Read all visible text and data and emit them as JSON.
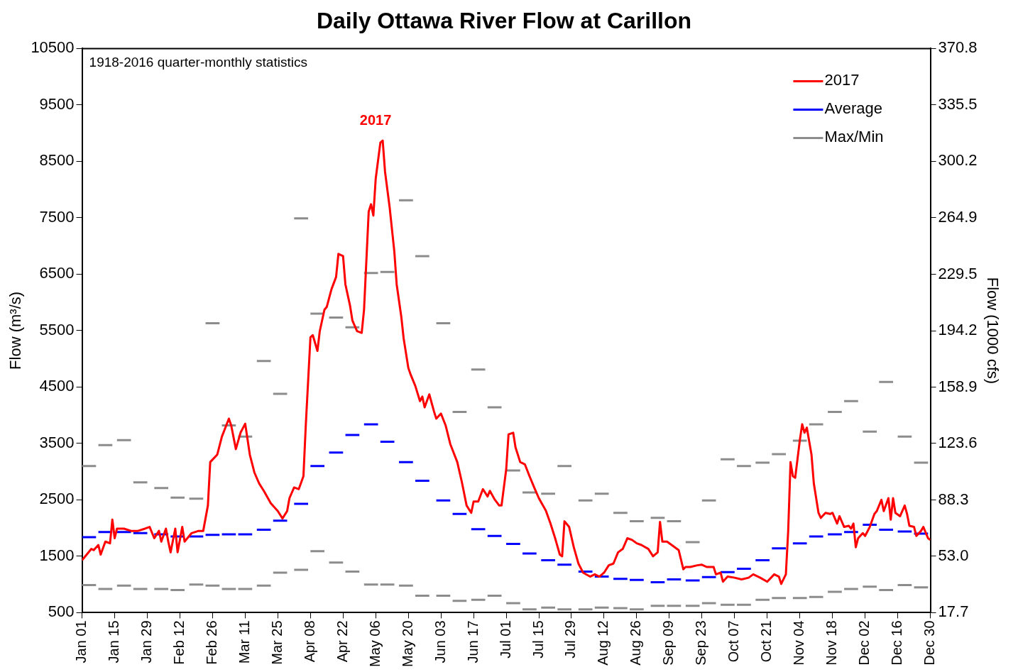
{
  "chart_data": {
    "type": "line",
    "title": "Daily Ottawa River Flow at Carillon",
    "ylabel": "Flow (m³/s)",
    "y2label": "Flow (1000 cfs)",
    "annotations": [
      "1918-2016 quarter-monthly statistics",
      "2017"
    ],
    "x": [
      "--01-01",
      "--01-07",
      null,
      "--01-08",
      "--01-14",
      null,
      "--01-16",
      "--01-22",
      null,
      "--01-23",
      "--01-29",
      null,
      "--02-01",
      "--02-07",
      null,
      "--02-08",
      "--02-14",
      null,
      "--02-16",
      "--02-22",
      null,
      "--02-23",
      "--02-29",
      null,
      "--03-01",
      "--03-07",
      null,
      "--03-08",
      "--03-14",
      null,
      "--03-16",
      "--03-22",
      null,
      "--03-23",
      "--03-29",
      null,
      "--04-01",
      "--04-07",
      null,
      "--04-08",
      "--04-14",
      null,
      "--04-16",
      "--04-22",
      null,
      "--04-23",
      "--04-29",
      null,
      "--05-01",
      "--05-07",
      null,
      "--05-08",
      "--05-14",
      null,
      "--05-16",
      "--05-22",
      null,
      "--05-23",
      "--05-29",
      null,
      "--06-01",
      "--06-07",
      null,
      "--06-08",
      "--06-14",
      null,
      "--06-16",
      "--06-22",
      null,
      "--06-23",
      "--06-29",
      null,
      "--07-01",
      "--07-07",
      null,
      "--07-08",
      "--07-14",
      null,
      "--07-16",
      "--07-22",
      null,
      "--07-23",
      "--07-29",
      null,
      "--08-01",
      "--08-07",
      null,
      "--08-08",
      "--08-14",
      null,
      "--08-16",
      "--08-22",
      null,
      "--08-23",
      "--08-29",
      null,
      "--09-01",
      "--09-07",
      null,
      "--09-08",
      "--09-14",
      null,
      "--09-16",
      "--09-22",
      null,
      "--09-23",
      "--09-29",
      null,
      "--10-01",
      "--10-07",
      null,
      "--10-08",
      "--10-14",
      null,
      "--10-16",
      "--10-22",
      null,
      "--10-23",
      "--10-29",
      null,
      "--11-01",
      "--11-07",
      null,
      "--11-08",
      "--11-14",
      null,
      "--11-16",
      "--11-22",
      null,
      "--11-23",
      "--11-29",
      null,
      "--12-01",
      "--12-07",
      null,
      "--12-08",
      "--12-14",
      null,
      "--12-16",
      "--12-22",
      null,
      "--12-23",
      "--12-29",
      null
    ],
    "xlim": [
      "--01-01",
      "--12-30"
    ],
    "xticks": [
      {
        "value": "--01-01",
        "label": "Jan 01"
      },
      {
        "value": "--01-15",
        "label": "Jan 15"
      },
      {
        "value": "--01-29",
        "label": "Jan 29"
      },
      {
        "value": "--02-12",
        "label": "Feb 12"
      },
      {
        "value": "--02-26",
        "label": "Feb 26"
      },
      {
        "value": "--03-11",
        "label": "Mar 11"
      },
      {
        "value": "--03-25",
        "label": "Mar 25"
      },
      {
        "value": "--04-08",
        "label": "Apr 08"
      },
      {
        "value": "--04-22",
        "label": "Apr 22"
      },
      {
        "value": "--05-06",
        "label": "May 06"
      },
      {
        "value": "--05-20",
        "label": "May 20"
      },
      {
        "value": "--06-03",
        "label": "Jun 03"
      },
      {
        "value": "--06-17",
        "label": "Jun 17"
      },
      {
        "value": "--07-01",
        "label": "Jul 01"
      },
      {
        "value": "--07-15",
        "label": "Jul 15"
      },
      {
        "value": "--07-29",
        "label": "Jul 29"
      },
      {
        "value": "--08-12",
        "label": "Aug 12"
      },
      {
        "value": "--08-26",
        "label": "Aug 26"
      },
      {
        "value": "--09-09",
        "label": "Sep 09"
      },
      {
        "value": "--09-23",
        "label": "Sep 23"
      },
      {
        "value": "--10-07",
        "label": "Oct 07"
      },
      {
        "value": "--10-21",
        "label": "Oct 21"
      },
      {
        "value": "--11-04",
        "label": "Nov 04"
      },
      {
        "value": "--11-18",
        "label": "Nov 18"
      },
      {
        "value": "--12-02",
        "label": "Dec 02"
      },
      {
        "value": "--12-16",
        "label": "Dec 16"
      },
      {
        "value": "--12-30",
        "label": "Dec 30"
      }
    ],
    "ylim": [
      500,
      10500
    ],
    "yticks": [
      500,
      1500,
      2500,
      3500,
      4500,
      5500,
      6500,
      7500,
      8500,
      9500,
      10500
    ],
    "y2lim": [
      17.7,
      370.8
    ],
    "y2ticks": [
      17.7,
      {
        "value": 53,
        "label": "53.0"
      },
      88.3,
      123.6,
      158.9,
      194.2,
      229.5,
      264.9,
      300.2,
      335.5,
      370.8
    ],
    "grid": false,
    "legend": "top right",
    "marker": "none",
    "series": [
      {
        "name": "2017",
        "color": "#ff0000",
        "x": [
          "--01-01",
          "--01-03",
          "--01-05",
          "--01-06",
          "--01-08",
          "--01-09",
          "--01-11",
          "--01-13",
          "--01-14",
          "--01-15",
          "--01-16",
          "--01-19",
          "--01-22",
          "--01-25",
          "--01-28",
          "--01-30",
          "--02-01",
          "--02-03",
          "--02-04",
          "--02-06",
          "--02-07",
          "--02-08",
          "--02-10",
          "--02-11",
          "--02-13",
          "--02-14",
          "--02-17",
          "--02-20",
          "--02-22",
          "--02-24",
          "--02-25",
          "--02-28",
          "--03-01",
          "--03-04",
          "--03-05",
          "--03-07",
          "--03-09",
          "--03-11",
          "--03-13",
          "--03-15",
          "--03-17",
          "--03-19",
          "--03-22",
          "--03-25",
          "--03-27",
          "--03-29",
          "--03-30",
          "--04-01",
          "--04-03",
          "--04-05",
          "--04-06",
          "--04-08",
          "--04-09",
          "--04-11",
          "--04-12",
          "--04-14",
          "--04-15",
          "--04-17",
          "--04-19",
          "--04-20",
          "--04-22",
          "--04-23",
          "--04-25",
          "--04-26",
          "--04-28",
          "--04-30",
          "--05-01",
          "--05-03",
          "--05-04",
          "--05-05",
          "--05-06",
          "--05-08",
          "--05-09",
          "--05-10",
          "--05-12",
          "--05-14",
          "--05-15",
          "--05-17",
          "--05-18",
          "--05-20",
          "--05-21",
          "--05-23",
          "--05-25",
          "--05-26",
          "--05-27",
          "--05-29",
          "--05-31",
          "--06-01",
          "--06-03",
          "--06-05",
          "--06-07",
          "--06-10",
          "--06-12",
          "--06-14",
          "--06-16",
          "--06-17",
          "--06-19",
          "--06-21",
          "--06-23",
          "--06-24",
          "--06-26",
          "--06-28",
          "--06-29",
          "--07-01",
          "--07-02",
          "--07-04",
          "--07-05",
          "--07-07",
          "--07-09",
          "--07-11",
          "--07-13",
          "--07-15",
          "--07-18",
          "--07-20",
          "--07-22",
          "--07-24",
          "--07-25",
          "--07-26",
          "--07-28",
          "--07-30",
          "--08-01",
          "--08-03",
          "--08-06",
          "--08-08",
          "--08-10",
          "--08-12",
          "--08-14",
          "--08-16",
          "--08-18",
          "--08-20",
          "--08-22",
          "--08-24",
          "--08-26",
          "--08-28",
          "--08-31",
          "--09-02",
          "--09-04",
          "--09-05",
          "--09-06",
          "--09-08",
          "--09-10",
          "--09-13",
          "--09-15",
          "--09-16",
          "--09-18",
          "--09-21",
          "--09-23",
          "--09-25",
          "--09-28",
          "--09-29",
          "--10-01",
          "--10-02",
          "--10-04",
          "--10-07",
          "--10-10",
          "--10-13",
          "--10-15",
          "--10-18",
          "--10-21",
          "--10-24",
          "--10-26",
          "--10-27",
          "--10-29",
          "--10-30",
          "--10-31",
          "--11-01",
          "--11-02",
          "--11-04",
          "--11-05",
          "--11-06",
          "--11-07",
          "--11-09",
          "--11-10",
          "--11-12",
          "--11-13",
          "--11-15",
          "--11-17",
          "--11-18",
          "--11-20",
          "--11-21",
          "--11-23",
          "--11-25",
          "--11-26",
          "--11-27",
          "--11-28",
          "--11-29",
          "--12-01",
          "--12-02",
          "--12-04",
          "--12-06",
          "--12-07",
          "--12-09",
          "--12-10",
          "--12-12",
          "--12-13",
          "--12-14",
          "--12-15",
          "--12-17",
          "--12-19",
          "--12-20",
          "--12-21",
          "--12-23",
          "--12-24",
          "--12-26",
          "--12-27",
          "--12-29",
          "--12-30"
        ],
        "values": [
          1430,
          1530,
          1630,
          1610,
          1700,
          1530,
          1760,
          1730,
          2150,
          1820,
          1990,
          1990,
          1950,
          1950,
          1990,
          2020,
          1820,
          1950,
          1760,
          1990,
          1760,
          1570,
          1990,
          1570,
          2020,
          1760,
          1910,
          1950,
          1950,
          2400,
          3170,
          3300,
          3620,
          3940,
          3820,
          3400,
          3690,
          3850,
          3300,
          2980,
          2790,
          2660,
          2440,
          2300,
          2170,
          2300,
          2530,
          2720,
          2690,
          2920,
          3820,
          5380,
          5420,
          5140,
          5490,
          5870,
          5920,
          6230,
          6450,
          6860,
          6820,
          6320,
          5940,
          5680,
          5490,
          5460,
          5870,
          7610,
          7740,
          7540,
          8190,
          8830,
          8870,
          8320,
          7680,
          6900,
          6320,
          5740,
          5360,
          4840,
          4720,
          4520,
          4250,
          4330,
          4140,
          4370,
          4070,
          3940,
          4030,
          3820,
          3490,
          3170,
          2810,
          2400,
          2270,
          2470,
          2470,
          2690,
          2560,
          2660,
          2510,
          2400,
          2400,
          3040,
          3660,
          3690,
          3430,
          3170,
          3130,
          2920,
          2720,
          2530,
          2310,
          2080,
          1820,
          1530,
          1500,
          2120,
          2020,
          1660,
          1370,
          1210,
          1140,
          1180,
          1140,
          1210,
          1340,
          1370,
          1570,
          1630,
          1820,
          1790,
          1730,
          1700,
          1630,
          1500,
          1570,
          2110,
          1760,
          1760,
          1700,
          1610,
          1270,
          1310,
          1310,
          1340,
          1350,
          1310,
          1310,
          1180,
          1210,
          1050,
          1140,
          1120,
          1090,
          1120,
          1180,
          1120,
          1050,
          1180,
          1140,
          1010,
          1180,
          1950,
          3170,
          2920,
          2890,
          3560,
          3840,
          3690,
          3780,
          3300,
          2790,
          2270,
          2180,
          2270,
          2250,
          2270,
          2080,
          2210,
          2020,
          2040,
          1990,
          2080,
          1660,
          1820,
          1910,
          1860,
          2020,
          2250,
          2300,
          2500,
          2300,
          2530,
          2150,
          2530,
          2270,
          2210,
          2400,
          2250,
          2040,
          2020,
          1860,
          1950,
          2020,
          1820,
          1790
        ]
      },
      {
        "name": "Average",
        "color": "#0000ff",
        "values": [
          1840,
          1840,
          null,
          1930,
          1930,
          null,
          1930,
          1930,
          null,
          1910,
          1910,
          null,
          1890,
          1890,
          null,
          1850,
          1850,
          null,
          1850,
          1850,
          null,
          1880,
          1880,
          null,
          1890,
          1890,
          null,
          1890,
          1890,
          null,
          1970,
          1970,
          null,
          2130,
          2130,
          null,
          2430,
          2430,
          null,
          3100,
          3100,
          null,
          3340,
          3340,
          null,
          3650,
          3650,
          null,
          3840,
          3840,
          null,
          3530,
          3530,
          null,
          3170,
          3170,
          null,
          2840,
          2840,
          null,
          2490,
          2490,
          null,
          2250,
          2250,
          null,
          1980,
          1980,
          null,
          1860,
          1860,
          null,
          1720,
          1720,
          null,
          1550,
          1550,
          null,
          1430,
          1430,
          null,
          1350,
          1350,
          null,
          1230,
          1230,
          null,
          1140,
          1140,
          null,
          1100,
          1100,
          null,
          1080,
          1080,
          null,
          1040,
          1040,
          null,
          1090,
          1090,
          null,
          1070,
          1070,
          null,
          1130,
          1130,
          null,
          1220,
          1220,
          null,
          1280,
          1280,
          null,
          1430,
          1430,
          null,
          1640,
          1640,
          null,
          1730,
          1730,
          null,
          1850,
          1850,
          null,
          1890,
          1890,
          null,
          1930,
          1930,
          null,
          2060,
          2060,
          null,
          1970,
          1970,
          null,
          1940,
          1940,
          null,
          1900,
          1900,
          null
        ]
      },
      {
        "name": "Max/Min",
        "color": "#8c8c8c",
        "values": [
          3100,
          3100,
          null,
          3470,
          3470,
          null,
          3560,
          3560,
          null,
          2810,
          2810,
          null,
          2710,
          2710,
          null,
          2540,
          2540,
          null,
          2520,
          2520,
          null,
          5630,
          5630,
          null,
          3820,
          3820,
          null,
          3620,
          3620,
          null,
          4960,
          4960,
          null,
          4380,
          4380,
          null,
          7490,
          7490,
          null,
          5800,
          5800,
          null,
          5730,
          5730,
          null,
          5560,
          5560,
          null,
          6520,
          6520,
          null,
          6540,
          6540,
          null,
          7810,
          7810,
          null,
          6820,
          6820,
          null,
          5630,
          5630,
          null,
          4060,
          4060,
          null,
          4810,
          4810,
          null,
          4140,
          4140,
          null,
          3020,
          3020,
          null,
          2630,
          2630,
          null,
          2610,
          2610,
          null,
          3100,
          3100,
          null,
          2490,
          2490,
          null,
          2610,
          2610,
          null,
          2270,
          2270,
          null,
          2120,
          2120,
          null,
          2180,
          2180,
          null,
          2120,
          2120,
          null,
          1750,
          1750,
          null,
          2490,
          2490,
          null,
          3220,
          3220,
          null,
          3100,
          3100,
          null,
          3160,
          3160,
          null,
          3310,
          3310,
          null,
          3550,
          3550,
          null,
          3840,
          3840,
          null,
          4060,
          4060,
          null,
          4250,
          4250,
          null,
          3710,
          3710,
          null,
          4590,
          4590,
          null,
          3620,
          3620,
          null,
          3160,
          3160,
          null
        ]
      },
      {
        "color": "#8c8c8c",
        "values": [
          990,
          990,
          null,
          920,
          920,
          null,
          980,
          980,
          null,
          920,
          920,
          null,
          920,
          920,
          null,
          900,
          900,
          null,
          1000,
          1000,
          null,
          980,
          980,
          null,
          920,
          920,
          null,
          920,
          920,
          null,
          980,
          980,
          null,
          1210,
          1210,
          null,
          1260,
          1260,
          null,
          1590,
          1590,
          null,
          1390,
          1390,
          null,
          1230,
          1230,
          null,
          1000,
          1000,
          null,
          1000,
          1000,
          null,
          980,
          980,
          null,
          800,
          800,
          null,
          800,
          800,
          null,
          710,
          710,
          null,
          730,
          730,
          null,
          800,
          800,
          null,
          670,
          670,
          null,
          560,
          560,
          null,
          590,
          590,
          null,
          560,
          560,
          null,
          560,
          560,
          null,
          590,
          590,
          null,
          580,
          580,
          null,
          560,
          560,
          null,
          620,
          620,
          null,
          620,
          620,
          null,
          620,
          620,
          null,
          670,
          670,
          null,
          640,
          640,
          null,
          640,
          640,
          null,
          730,
          730,
          null,
          760,
          760,
          null,
          760,
          760,
          null,
          780,
          780,
          null,
          870,
          870,
          null,
          920,
          920,
          null,
          960,
          960,
          null,
          900,
          900,
          null,
          990,
          990,
          null,
          950,
          950,
          null
        ]
      }
    ]
  }
}
